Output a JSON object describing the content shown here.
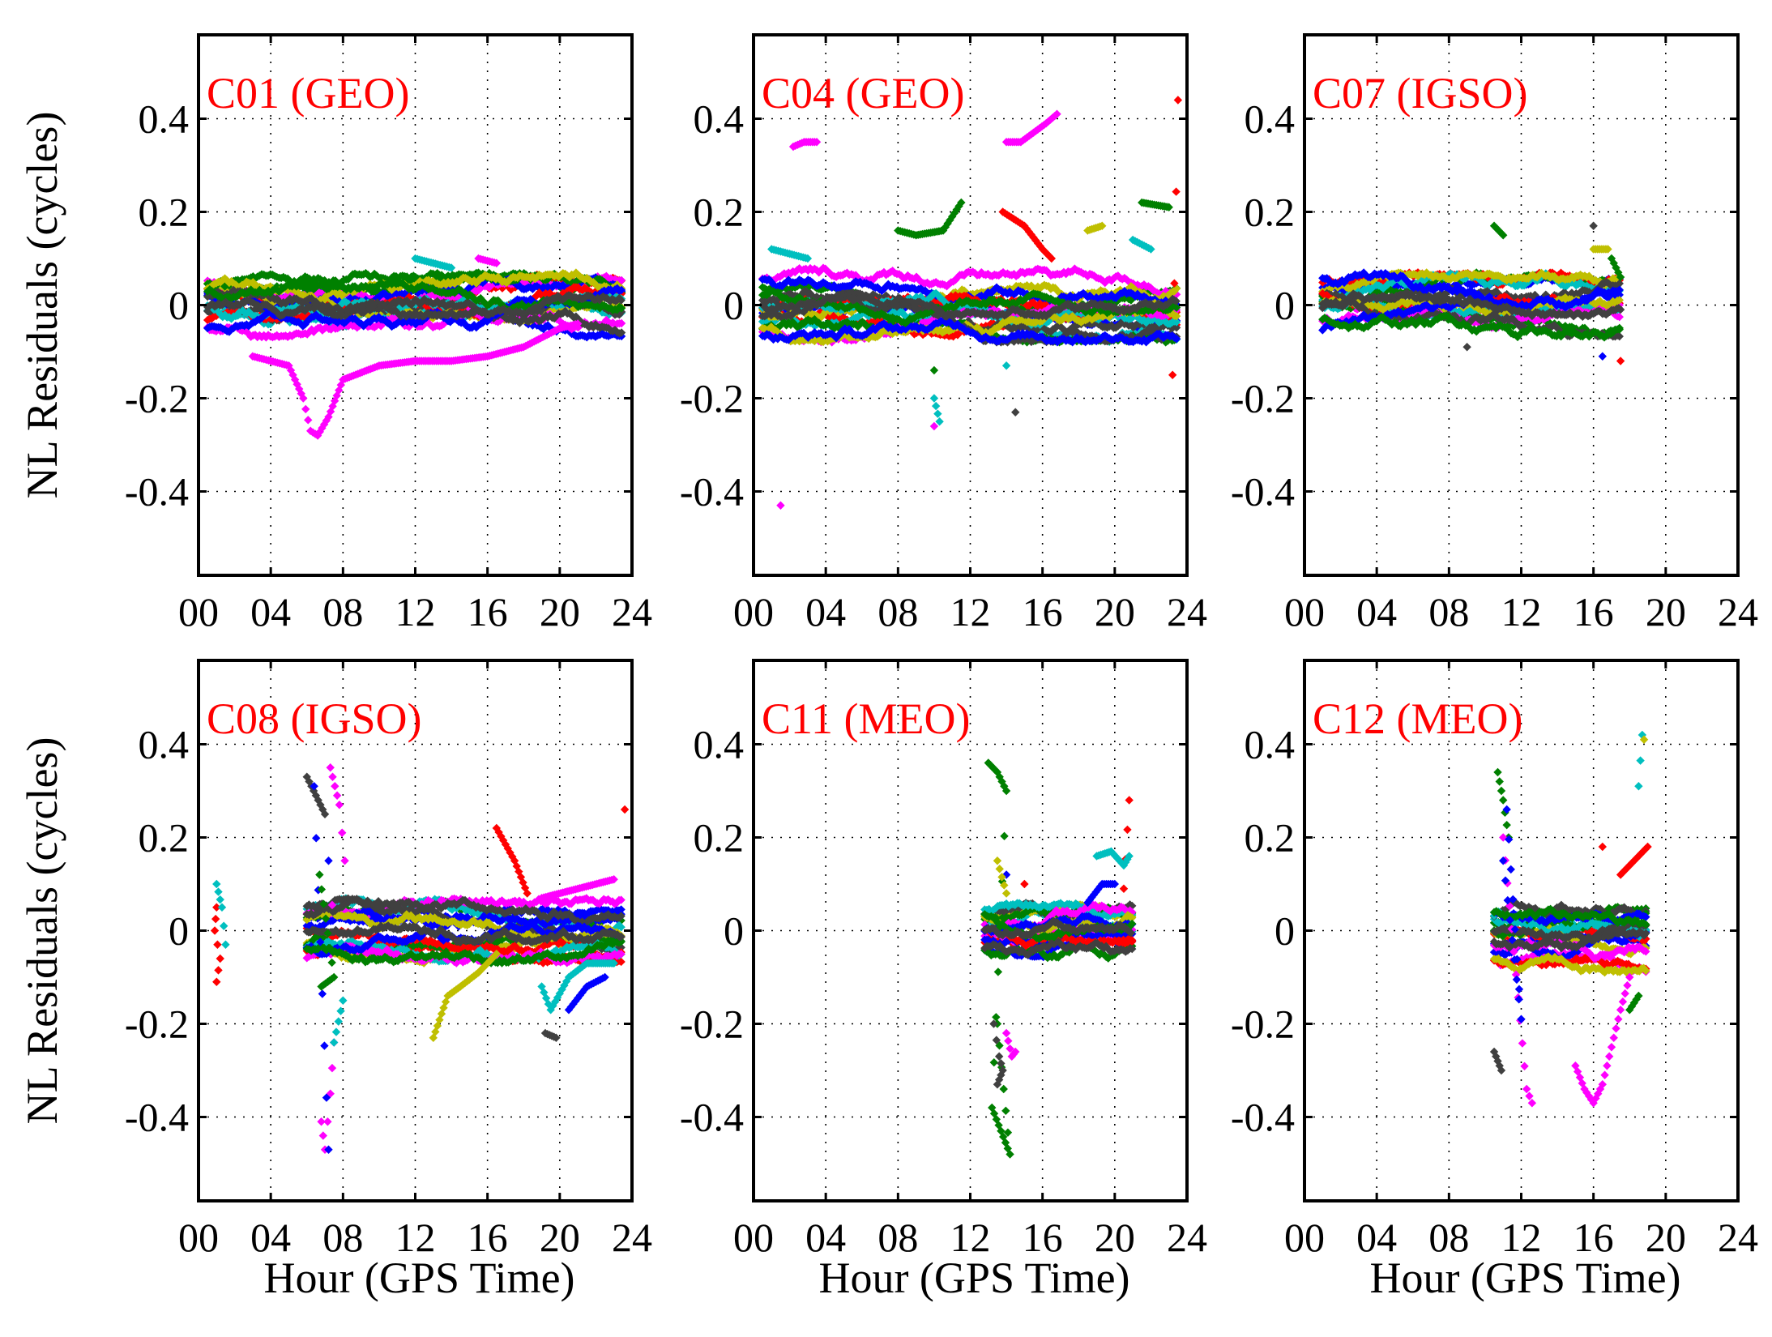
{
  "chart_data": {
    "type": "scatter",
    "ylabel": "NL Residuals (cycles)",
    "xlabel": "Hour (GPS Time)",
    "xlim": [
      0,
      24
    ],
    "ylim": [
      -0.58,
      0.58
    ],
    "x_ticks": [
      0,
      4,
      8,
      12,
      16,
      20,
      24
    ],
    "x_tick_labels": [
      "00",
      "04",
      "08",
      "12",
      "16",
      "20",
      "24"
    ],
    "y_ticks": [
      0.4,
      0.2,
      0,
      -0.2,
      -0.4
    ],
    "y_tick_labels": [
      "0.4",
      "0.2",
      "0",
      "-0.2",
      "-0.4"
    ],
    "grid": true,
    "marker": "diamond",
    "colors": [
      "#0000ff",
      "#008000",
      "#ff0000",
      "#00bfbf",
      "#ff00ff",
      "#bfbf00",
      "#404040"
    ],
    "panels": [
      {
        "title": "C01 (GEO)",
        "title_color": "#ff0000",
        "series_envelope": {
          "x_range": [
            0.5,
            23.5
          ],
          "y_band": [
            -0.07,
            0.07
          ]
        },
        "outliers": [
          {
            "color": "#ff00ff",
            "points": [
              [
                3,
                -0.11
              ],
              [
                4,
                -0.12
              ],
              [
                5,
                -0.13
              ],
              [
                5.8,
                -0.2
              ],
              [
                6.2,
                -0.27
              ],
              [
                6.6,
                -0.28
              ],
              [
                7.2,
                -0.24
              ],
              [
                8,
                -0.16
              ],
              [
                10,
                -0.13
              ],
              [
                12,
                -0.12
              ],
              [
                14,
                -0.12
              ],
              [
                16,
                -0.11
              ],
              [
                18,
                -0.09
              ],
              [
                20,
                -0.05
              ],
              [
                21,
                -0.04
              ]
            ]
          },
          {
            "color": "#00bfbf",
            "points": [
              [
                12,
                0.1
              ],
              [
                13,
                0.09
              ],
              [
                14,
                0.08
              ]
            ]
          },
          {
            "color": "#ff00ff",
            "points": [
              [
                15.5,
                0.1
              ],
              [
                16.5,
                0.09
              ]
            ]
          }
        ]
      },
      {
        "title": "C04 (GEO)",
        "title_color": "#ff0000",
        "series_envelope": {
          "x_range": [
            0.5,
            23.5
          ],
          "y_band": [
            -0.08,
            0.08
          ]
        },
        "outliers": [
          {
            "color": "#ff00ff",
            "points": [
              [
                2.2,
                0.34
              ],
              [
                2.8,
                0.35
              ],
              [
                3.5,
                0.35
              ],
              [
                14,
                0.35
              ],
              [
                14.8,
                0.35
              ],
              [
                15.5,
                0.37
              ],
              [
                16.2,
                0.39
              ],
              [
                16.8,
                0.41
              ]
            ]
          },
          {
            "color": "#ff00ff",
            "points": [
              [
                1.5,
                -0.43
              ]
            ]
          },
          {
            "color": "#ff0000",
            "points": [
              [
                13.8,
                0.2
              ],
              [
                15,
                0.17
              ],
              [
                16,
                0.12
              ],
              [
                16.5,
                0.1
              ],
              [
                23.5,
                0.44
              ],
              [
                23.2,
                -0.15
              ]
            ]
          },
          {
            "color": "#00bfbf",
            "points": [
              [
                1,
                0.12
              ],
              [
                2,
                0.11
              ],
              [
                3,
                0.1
              ],
              [
                10,
                -0.2
              ],
              [
                10.3,
                -0.25
              ],
              [
                14,
                -0.13
              ],
              [
                21,
                0.14
              ],
              [
                22,
                0.12
              ]
            ]
          },
          {
            "color": "#ff00ff",
            "points": [
              [
                10,
                -0.26
              ]
            ]
          },
          {
            "color": "#008000",
            "points": [
              [
                8,
                0.16
              ],
              [
                9,
                0.15
              ],
              [
                10.5,
                0.16
              ],
              [
                11.5,
                0.22
              ],
              [
                21.5,
                0.22
              ],
              [
                23,
                0.21
              ],
              [
                10,
                -0.14
              ]
            ]
          },
          {
            "color": "#404040",
            "points": [
              [
                14.5,
                -0.23
              ]
            ]
          },
          {
            "color": "#bfbf00",
            "points": [
              [
                18.5,
                0.16
              ],
              [
                19.3,
                0.17
              ]
            ]
          }
        ]
      },
      {
        "title": "C07 (IGSO)",
        "title_color": "#ff0000",
        "series_envelope": {
          "x_range": [
            1,
            17.5
          ],
          "y_band": [
            -0.07,
            0.07
          ]
        },
        "outliers": [
          {
            "color": "#008000",
            "points": [
              [
                10.5,
                0.17
              ],
              [
                11,
                0.15
              ],
              [
                17,
                0.1
              ],
              [
                17.5,
                0.06
              ]
            ]
          },
          {
            "color": "#404040",
            "points": [
              [
                9,
                -0.09
              ],
              [
                16,
                0.17
              ]
            ]
          },
          {
            "color": "#ff0000",
            "points": [
              [
                17.5,
                -0.12
              ]
            ]
          },
          {
            "color": "#0000ff",
            "points": [
              [
                16.5,
                -0.11
              ]
            ]
          },
          {
            "color": "#bfbf00",
            "points": [
              [
                16,
                0.12
              ],
              [
                16.8,
                0.12
              ]
            ]
          }
        ]
      },
      {
        "title": "C08 (IGSO)",
        "title_color": "#ff0000",
        "series_envelope": {
          "x_range": [
            6,
            23.5
          ],
          "y_band": [
            -0.07,
            0.07
          ]
        },
        "outliers": [
          {
            "color": "#ff0000",
            "points": [
              [
                1,
                -0.11
              ],
              [
                1.2,
                -0.06
              ],
              [
                0.9,
                0.0
              ],
              [
                1,
                0.05
              ],
              [
                16.5,
                0.22
              ],
              [
                17.5,
                0.15
              ],
              [
                18.2,
                0.08
              ],
              [
                23.6,
                0.26
              ]
            ]
          },
          {
            "color": "#00bfbf",
            "points": [
              [
                1,
                0.1
              ],
              [
                1.3,
                0.05
              ],
              [
                1.5,
                -0.03
              ],
              [
                19,
                -0.12
              ],
              [
                19.5,
                -0.17
              ],
              [
                20.5,
                -0.1
              ],
              [
                21.5,
                -0.07
              ],
              [
                23,
                -0.07
              ]
            ]
          },
          {
            "color": "#404040",
            "points": [
              [
                6,
                0.33
              ],
              [
                6.5,
                0.29
              ],
              [
                7,
                0.25
              ],
              [
                19.2,
                -0.22
              ],
              [
                19.8,
                -0.23
              ]
            ]
          },
          {
            "color": "#ff00ff",
            "points": [
              [
                6.8,
                -0.41
              ],
              [
                7,
                -0.47
              ],
              [
                7.3,
                -0.35
              ],
              [
                7.5,
                -0.24
              ],
              [
                7.3,
                0.35
              ],
              [
                7.8,
                0.27
              ],
              [
                8.1,
                0.15
              ]
            ]
          },
          {
            "color": "#0000ff",
            "points": [
              [
                6.4,
                0.31
              ],
              [
                7.2,
                -0.47
              ],
              [
                7.2,
                0.15
              ],
              [
                20.5,
                -0.17
              ],
              [
                21.5,
                -0.12
              ],
              [
                22.5,
                -0.1
              ]
            ]
          },
          {
            "color": "#bfbf00",
            "points": [
              [
                13,
                -0.23
              ],
              [
                13.8,
                -0.14
              ],
              [
                14.5,
                -0.12
              ],
              [
                15.5,
                -0.09
              ],
              [
                16.5,
                -0.05
              ]
            ]
          },
          {
            "color": "#ff00ff",
            "points": [
              [
                19,
                0.07
              ],
              [
                21,
                0.09
              ],
              [
                23,
                0.11
              ]
            ]
          },
          {
            "color": "#00bfbf",
            "points": [
              [
                7.5,
                -0.24
              ],
              [
                8,
                -0.15
              ]
            ]
          },
          {
            "color": "#008000",
            "points": [
              [
                6.8,
                -0.12
              ],
              [
                7.5,
                -0.1
              ],
              [
                6.7,
                0.12
              ]
            ]
          }
        ]
      },
      {
        "title": "C11 (MEO)",
        "title_color": "#ff0000",
        "series_envelope": {
          "x_range": [
            12.8,
            21
          ],
          "y_band": [
            -0.06,
            0.06
          ]
        },
        "outliers": [
          {
            "color": "#008000",
            "points": [
              [
                13,
                0.36
              ],
              [
                13.5,
                0.34
              ],
              [
                14,
                0.3
              ],
              [
                13.2,
                -0.38
              ],
              [
                14.2,
                -0.48
              ],
              [
                13.5,
                -0.2
              ]
            ]
          },
          {
            "color": "#404040",
            "points": [
              [
                13.3,
                -0.2
              ],
              [
                13.6,
                -0.27
              ],
              [
                13.8,
                -0.3
              ],
              [
                13.5,
                -0.33
              ]
            ]
          },
          {
            "color": "#ff00ff",
            "points": [
              [
                14,
                -0.22
              ],
              [
                14.3,
                -0.27
              ],
              [
                14.5,
                -0.26
              ]
            ]
          },
          {
            "color": "#ff0000",
            "points": [
              [
                20.8,
                0.28
              ],
              [
                20.5,
                0.09
              ],
              [
                15,
                0.1
              ]
            ]
          },
          {
            "color": "#00bfbf",
            "points": [
              [
                19,
                0.16
              ],
              [
                19.8,
                0.17
              ],
              [
                20.5,
                0.14
              ],
              [
                20.8,
                0.16
              ]
            ]
          },
          {
            "color": "#0000ff",
            "points": [
              [
                18.5,
                0.06
              ],
              [
                19.3,
                0.1
              ],
              [
                20,
                0.1
              ],
              [
                14,
                0.12
              ]
            ]
          },
          {
            "color": "#bfbf00",
            "points": [
              [
                14,
                0.08
              ],
              [
                13.5,
                0.15
              ]
            ]
          }
        ]
      },
      {
        "title": "C12 (MEO)",
        "title_color": "#ff0000",
        "series_envelope": {
          "x_range": [
            10.5,
            19
          ],
          "y_band": [
            -0.09,
            0.09
          ]
        },
        "outliers": [
          {
            "color": "#008000",
            "points": [
              [
                10.7,
                0.34
              ],
              [
                11,
                0.28
              ],
              [
                11.3,
                0.2
              ],
              [
                18,
                -0.17
              ],
              [
                18.5,
                -0.14
              ]
            ]
          },
          {
            "color": "#404040",
            "points": [
              [
                10.5,
                -0.26
              ],
              [
                10.7,
                -0.28
              ],
              [
                10.9,
                -0.3
              ]
            ]
          },
          {
            "color": "#ff00ff",
            "points": [
              [
                11,
                0.2
              ],
              [
                12.3,
                -0.34
              ],
              [
                12.6,
                -0.37
              ],
              [
                15,
                -0.29
              ],
              [
                15.5,
                -0.34
              ],
              [
                16,
                -0.37
              ],
              [
                16.5,
                -0.33
              ],
              [
                17,
                -0.25
              ],
              [
                17.5,
                -0.17
              ],
              [
                18,
                -0.1
              ]
            ]
          },
          {
            "color": "#ff0000",
            "points": [
              [
                17.5,
                0.12
              ],
              [
                18.5,
                0.16
              ],
              [
                19,
                0.18
              ],
              [
                16.5,
                0.18
              ]
            ]
          },
          {
            "color": "#00bfbf",
            "points": [
              [
                18.5,
                0.31
              ],
              [
                18.7,
                0.42
              ]
            ]
          },
          {
            "color": "#bfbf00",
            "points": [
              [
                18.8,
                0.41
              ]
            ]
          },
          {
            "color": "#0000ff",
            "points": [
              [
                11,
                0.15
              ],
              [
                12,
                -0.19
              ],
              [
                11.2,
                0.26
              ]
            ]
          }
        ]
      }
    ]
  }
}
